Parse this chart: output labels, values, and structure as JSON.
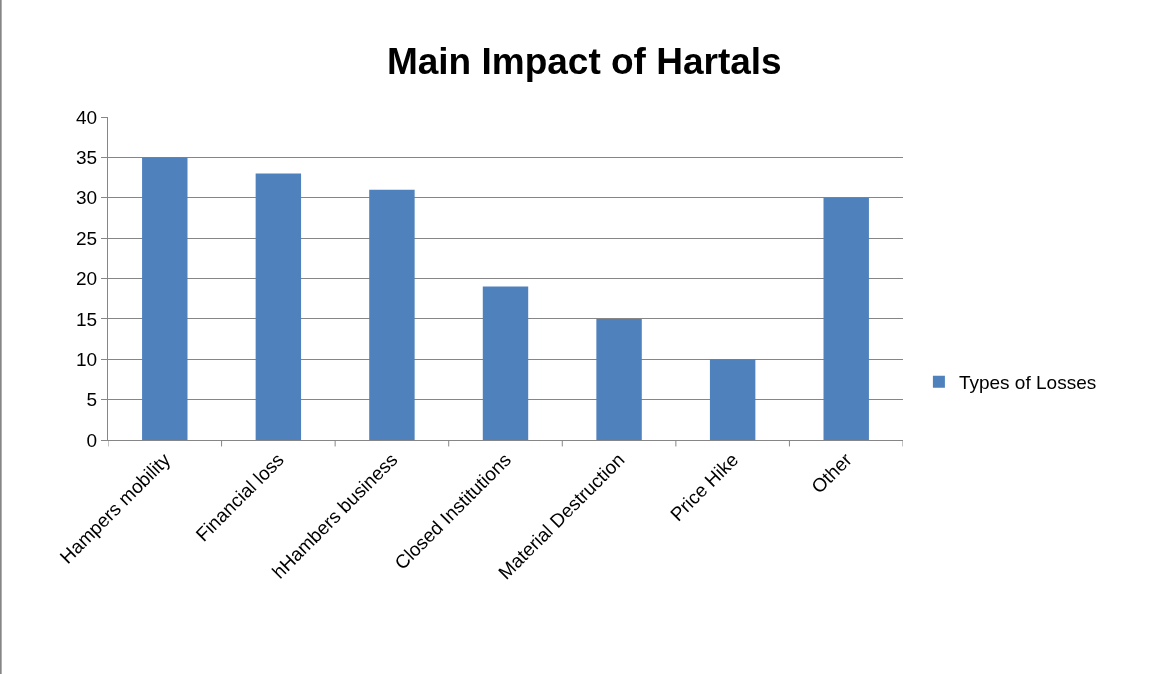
{
  "chart_data": {
    "type": "bar",
    "title": "Main Impact of Hartals",
    "categories": [
      "Hampers mobility",
      "Financial loss",
      "hHambers business",
      "Closed Institutions",
      "Material Destruction",
      "Price Hike",
      "Other"
    ],
    "series": [
      {
        "name": "Types of Losses",
        "color": "#4f81bd",
        "values": [
          35,
          33,
          31,
          19,
          15,
          10,
          30
        ]
      }
    ],
    "ylim": [
      0,
      40
    ],
    "yticks": [
      0,
      5,
      10,
      15,
      20,
      25,
      30,
      35,
      40
    ],
    "grid": "y",
    "legend": "right"
  }
}
